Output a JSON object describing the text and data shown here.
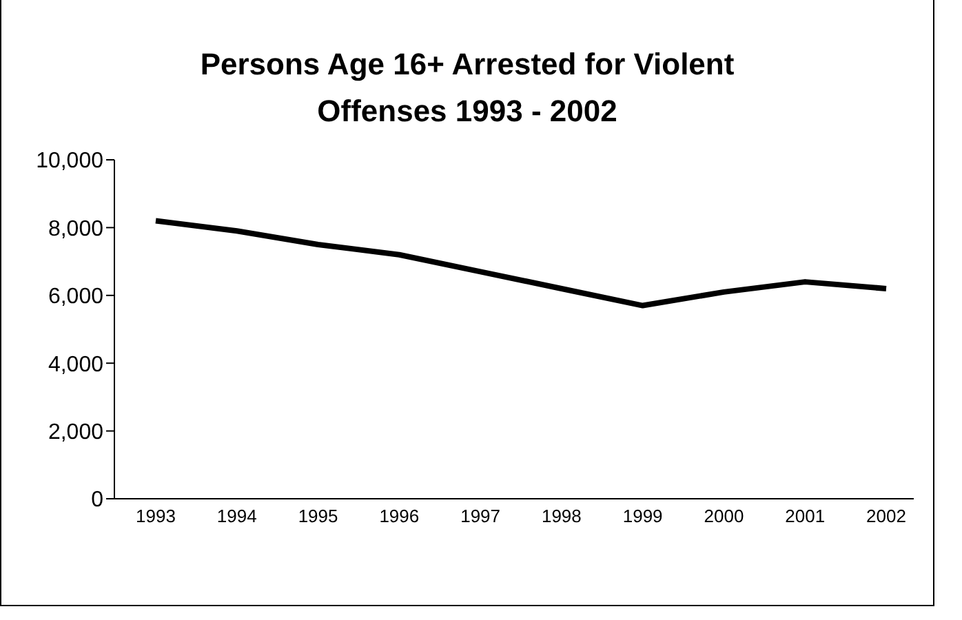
{
  "chart_data": {
    "type": "line",
    "title": "Persons Age 16+ Arrested for Violent Offenses 1993 - 2002",
    "categories": [
      "1993",
      "1994",
      "1995",
      "1996",
      "1997",
      "1998",
      "1999",
      "2000",
      "2001",
      "2002"
    ],
    "series": [
      {
        "color": "#000000",
        "values": [
          8200,
          7900,
          7500,
          7200,
          6700,
          6200,
          5700,
          6100,
          6400,
          6200
        ]
      }
    ],
    "ylim": [
      0,
      10000
    ],
    "yticks": [
      0,
      {
        "value": 2000,
        "label": "2,000"
      },
      {
        "value": 4000,
        "label": "4,000"
      },
      {
        "value": 6000,
        "label": "6,000"
      },
      {
        "value": 8000,
        "label": "8,000"
      },
      {
        "value": 10000,
        "label": "10,000"
      }
    ],
    "grid": false,
    "legend": false,
    "marker": "none",
    "line_style": "solid"
  }
}
